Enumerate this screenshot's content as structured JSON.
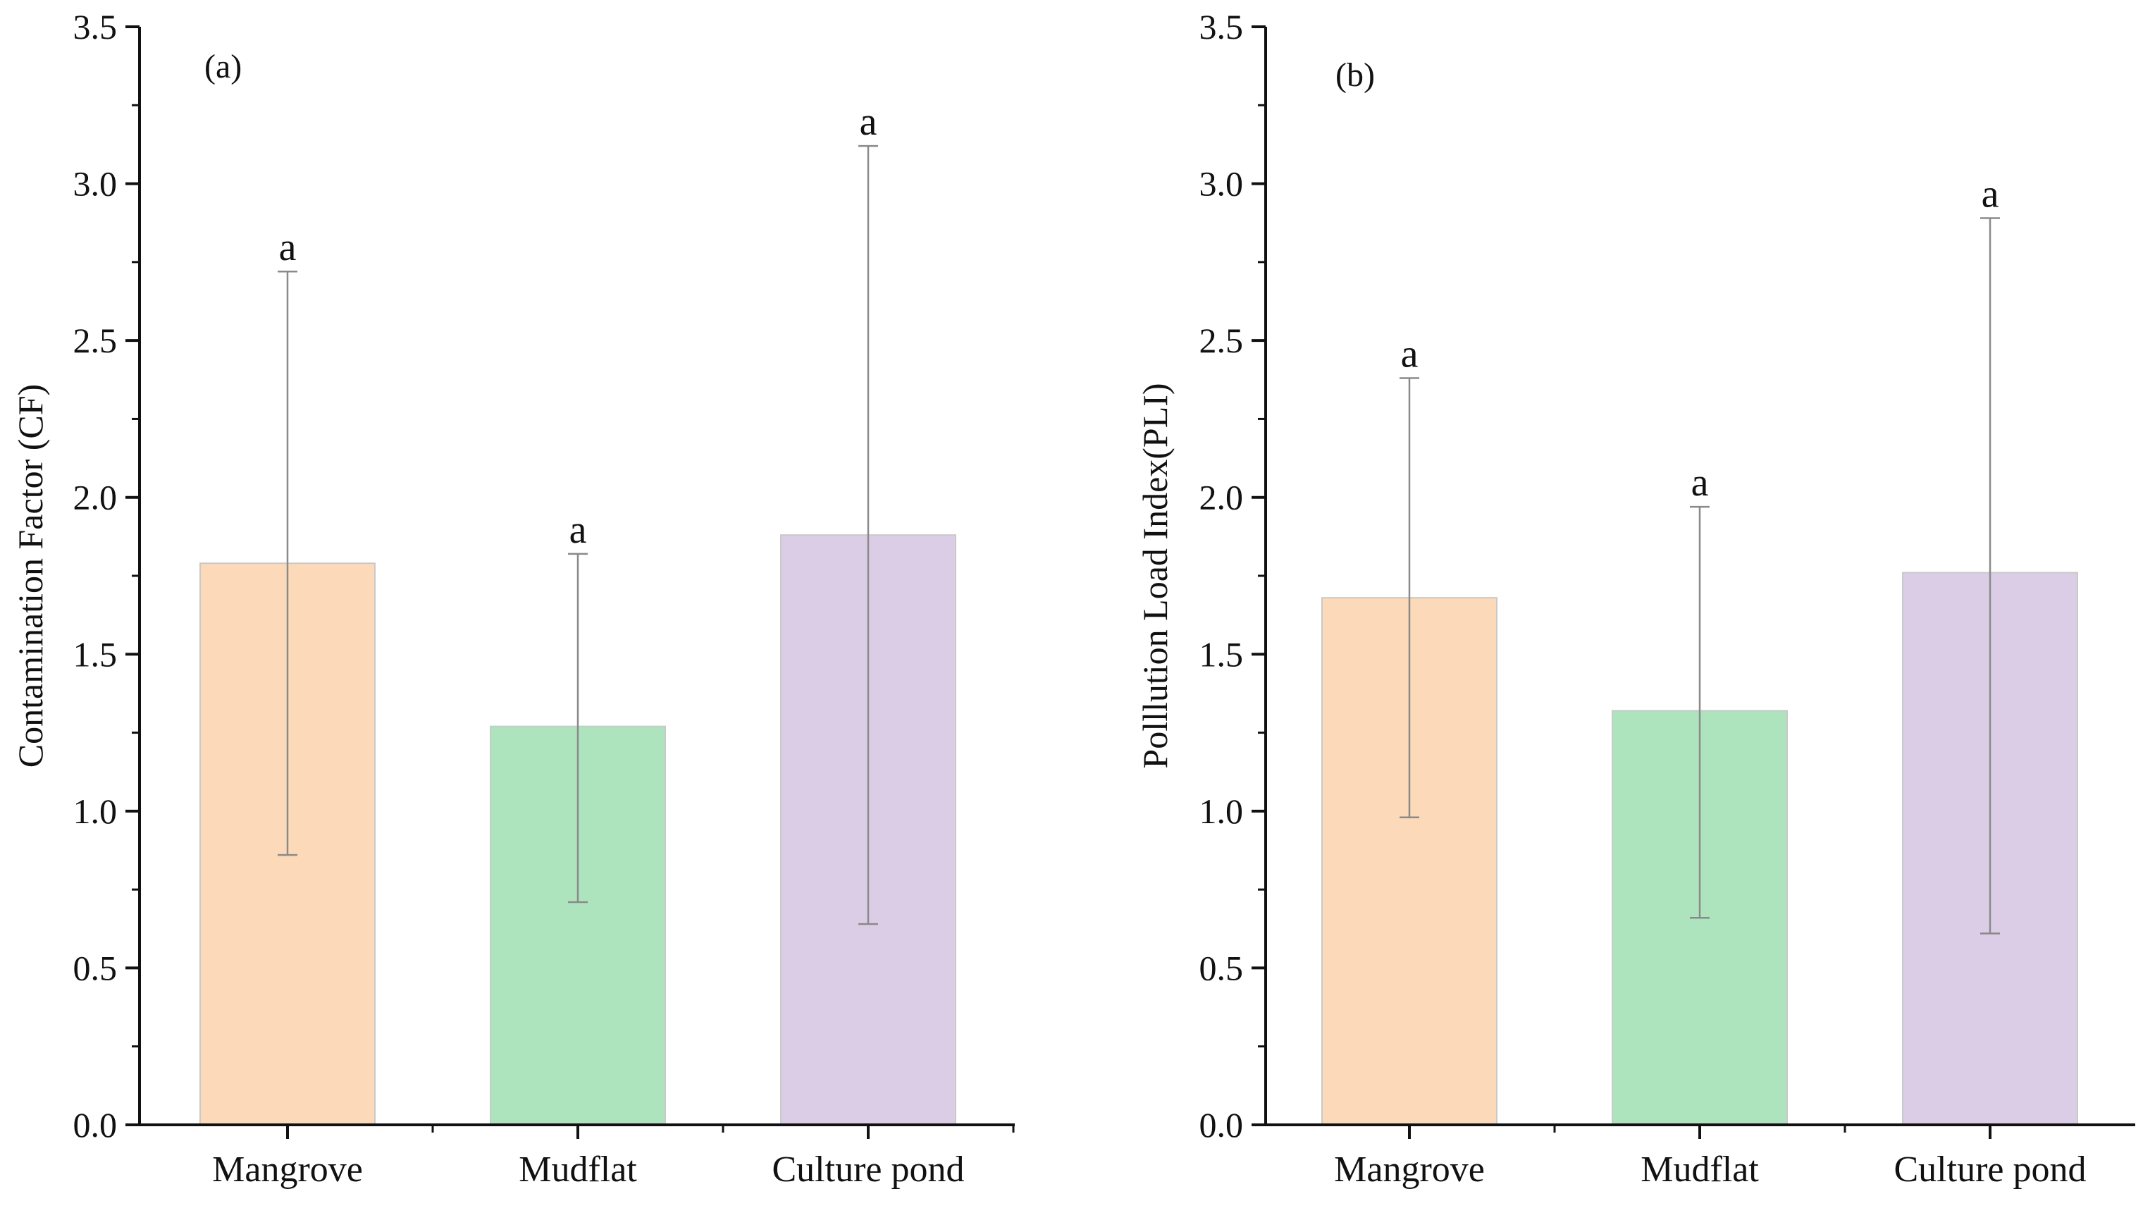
{
  "chart_data": [
    {
      "type": "bar",
      "panel_label": "(a)",
      "categories": [
        "Mangrove",
        "Mudflat",
        "Culture pond"
      ],
      "values": [
        1.79,
        1.27,
        1.88
      ],
      "error_low": [
        0.86,
        0.71,
        0.64
      ],
      "error_high": [
        2.72,
        1.82,
        3.12
      ],
      "significance": [
        "a",
        "a",
        "a"
      ],
      "colors": [
        "#fcd9b8",
        "#aee4bd",
        "#dacde5"
      ],
      "ylabel": "Contamination Factor (CF)",
      "xlabel": "",
      "ylim": [
        0,
        3.5
      ],
      "yticks": [
        "0.0",
        "0.5",
        "1.0",
        "1.5",
        "2.0",
        "2.5",
        "3.0",
        "3.5"
      ]
    },
    {
      "type": "bar",
      "panel_label": "(b)",
      "categories": [
        "Mangrove",
        "Mudflat",
        "Culture pond"
      ],
      "values": [
        1.68,
        1.32,
        1.76
      ],
      "error_low": [
        0.98,
        0.66,
        0.61
      ],
      "error_high": [
        2.38,
        1.97,
        2.89
      ],
      "significance": [
        "a",
        "a",
        "a"
      ],
      "colors": [
        "#fcd9b8",
        "#aee4bd",
        "#dacde5"
      ],
      "ylabel": "Polllution Load Index(PLI)",
      "xlabel": "",
      "ylim": [
        0,
        3.5
      ],
      "yticks": [
        "0.0",
        "0.5",
        "1.0",
        "1.5",
        "2.0",
        "2.5",
        "3.0",
        "3.5"
      ]
    }
  ]
}
